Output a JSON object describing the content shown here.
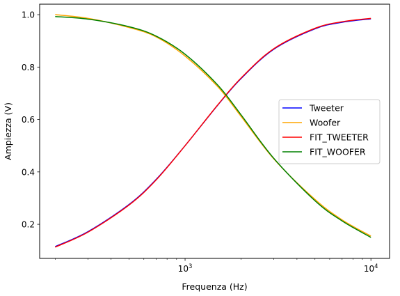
{
  "chart_data": {
    "type": "line",
    "title": "",
    "xlabel": "Frequenza (Hz)",
    "ylabel": "Ampiezza (V)",
    "xscale": "log",
    "xlim": [
      165,
      12600
    ],
    "ylim": [
      0.07,
      1.04
    ],
    "grid": false,
    "legend_position": "center-right",
    "x_ticks": [
      1000,
      10000
    ],
    "x_tick_labels": [
      {
        "base": "10",
        "exp": "3"
      },
      {
        "base": "10",
        "exp": "4"
      }
    ],
    "y_ticks": [
      0.2,
      0.4,
      0.6,
      0.8,
      1.0
    ],
    "y_tick_labels": [
      "0.2",
      "0.4",
      "0.6",
      "0.8",
      "1.0"
    ],
    "series": [
      {
        "name": "Tweeter",
        "color": "#0000ff",
        "x": [
          200,
          300,
          500,
          700,
          1000,
          1500,
          2000,
          3000,
          5000,
          7000,
          10000
        ],
        "y": [
          0.115,
          0.172,
          0.276,
          0.372,
          0.5,
          0.655,
          0.756,
          0.868,
          0.946,
          0.971,
          0.984
        ]
      },
      {
        "name": "Woofer",
        "color": "#ffa500",
        "x": [
          200,
          300,
          500,
          700,
          1000,
          1500,
          2000,
          3000,
          5000,
          7000,
          10000
        ],
        "y": [
          1.0,
          0.986,
          0.951,
          0.915,
          0.842,
          0.725,
          0.612,
          0.45,
          0.295,
          0.217,
          0.155
        ]
      },
      {
        "name": "FIT_TWEETER",
        "color": "#ff0000",
        "x": [
          200,
          300,
          500,
          700,
          1000,
          1500,
          2000,
          3000,
          5000,
          7000,
          10000
        ],
        "y": [
          0.113,
          0.17,
          0.274,
          0.37,
          0.5,
          0.656,
          0.758,
          0.87,
          0.948,
          0.973,
          0.986
        ]
      },
      {
        "name": "FIT_WOOFER",
        "color": "#008000",
        "x": [
          200,
          300,
          500,
          700,
          1000,
          1500,
          2000,
          3000,
          5000,
          7000,
          10000
        ],
        "y": [
          0.993,
          0.983,
          0.954,
          0.918,
          0.849,
          0.731,
          0.618,
          0.452,
          0.29,
          0.213,
          0.15
        ]
      }
    ]
  }
}
